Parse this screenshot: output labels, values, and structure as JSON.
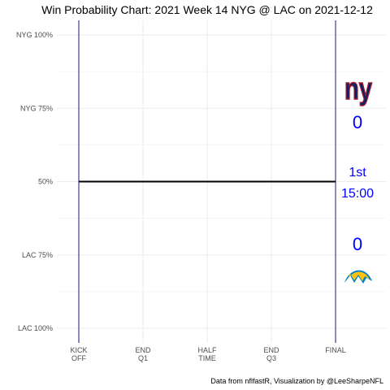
{
  "chart_data": {
    "type": "line",
    "title": "Win Probability Chart: 2021 Week 14 NYG @ LAC on 2021-12-12",
    "yticks": [
      "NYG 100%",
      "NYG 75%",
      "50%",
      "LAC 75%",
      "LAC 100%"
    ],
    "ytick_values": [
      1.0,
      0.75,
      0.5,
      0.25,
      0.0
    ],
    "ylim": [
      0,
      1
    ],
    "xticks": [
      {
        "line1": "KICK",
        "line2": "OFF",
        "value": 0
      },
      {
        "line1": "END",
        "line2": "Q1",
        "value": 0.25
      },
      {
        "line1": "HALF",
        "line2": "TIME",
        "value": 0.5
      },
      {
        "line1": "END",
        "line2": "Q3",
        "value": 0.75
      },
      {
        "line1": "FINAL",
        "line2": "",
        "value": 1
      }
    ],
    "xlim": [
      0,
      1
    ],
    "grid": true,
    "series": [
      {
        "x": [
          0,
          1
        ],
        "y": [
          0.5,
          0.5
        ]
      }
    ],
    "home": {
      "team": "LAC",
      "score": "0",
      "color": "#0000ff",
      "logo": "chargers-bolt-icon"
    },
    "away": {
      "team": "NYG",
      "score": "0",
      "color": "#0000ff",
      "logo": "ny-logo-icon",
      "logo_text": "ny"
    },
    "game_clock": {
      "quarter": "1st",
      "time": "15:00"
    },
    "caption": "Data from nflfastR, Visualization by @LeeSharpeNFL",
    "colors": {
      "axis_line": "#1a1a7a",
      "wp_line": "#000000",
      "grid": "#ebebeb",
      "ny_blue": "#0b2265",
      "ny_red": "#a71930",
      "lac_blue": "#0080c6",
      "lac_gold": "#ffc20e"
    }
  }
}
